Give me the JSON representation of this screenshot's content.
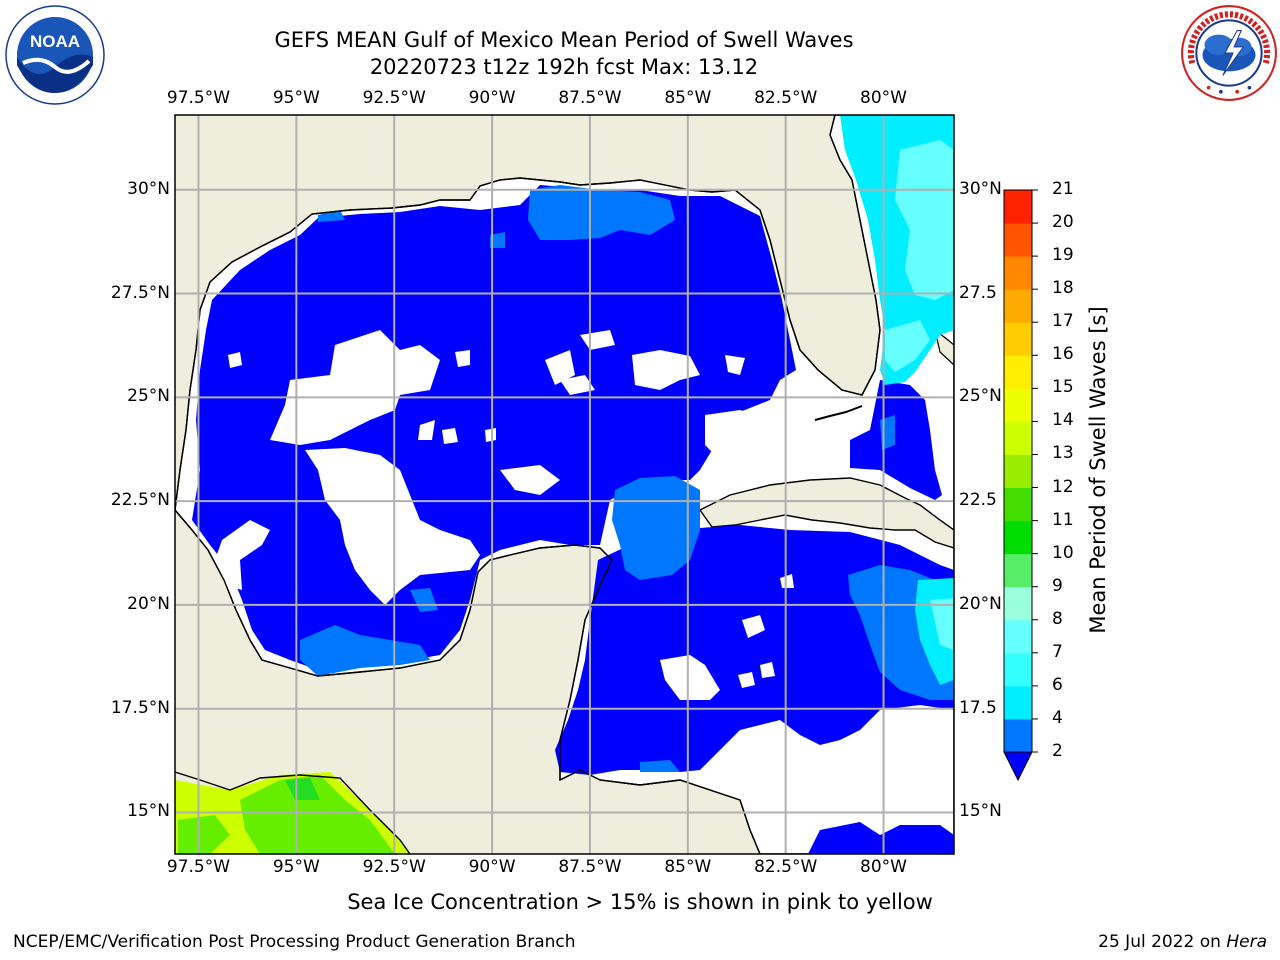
{
  "title_line1": "GEFS MEAN Gulf of Mexico Mean Period of Swell Waves",
  "title_line2": "20220723 t12z 192h fcst   Max: 13.12",
  "subnote": "Sea Ice Concentration > 15% is shown in pink to yellow",
  "footer": {
    "left": "NCEP/EMC/Verification Post Processing Product Generation Branch",
    "right_date": "25 Jul 2022 on ",
    "right_host": "Hera"
  },
  "logos": {
    "left": {
      "icon": "noaa-logo",
      "text": "NOAA",
      "ring_text": "NATIONAL OCEANIC AND ATMOSPHERIC ADMINISTRATION · U.S. DEPARTMENT OF COMMERCE"
    },
    "right": {
      "icon": "nws-logo",
      "ring_text": "NATIONAL WEATHER SERVICE"
    }
  },
  "map": {
    "lon_labels": [
      "97.5°W",
      "95°W",
      "92.5°W",
      "90°W",
      "87.5°W",
      "85°W",
      "82.5°W",
      "80°W"
    ],
    "lat_labels_left": [
      "30°N",
      "27.5°N",
      "25°N",
      "22.5°N",
      "20°N",
      "17.5°N",
      "15°N"
    ],
    "lat_labels_right": [
      "30°N",
      "27.5",
      "25°N",
      "22.5",
      "20°N",
      "17.5",
      "15°N"
    ],
    "lon_values": [
      -97.5,
      -95,
      -92.5,
      -90,
      -87.5,
      -85,
      -82.5,
      -80
    ],
    "lat_values": [
      30,
      27.5,
      25,
      22.5,
      20,
      17.5,
      15
    ],
    "extent": {
      "lon_min": -98.1,
      "lon_max": -78.2,
      "lat_min": 14.0,
      "lat_max": 31.8
    },
    "colors": {
      "land": "#efeddc",
      "ocean_missing": "#ffffff",
      "grid": "#b0b0b0"
    }
  },
  "colorbar": {
    "label": "Mean Period of Swell Waves [s]",
    "ticks": [
      "2",
      "4",
      "6",
      "7",
      "8",
      "9",
      "10",
      "11",
      "12",
      "13",
      "14",
      "15",
      "16",
      "17",
      "18",
      "19",
      "20",
      "21"
    ],
    "colors": [
      "#0000ff",
      "#0077ff",
      "#00eeff",
      "#33ffff",
      "#66ffff",
      "#99ffdd",
      "#55ee66",
      "#00dd00",
      "#44dd00",
      "#99ee00",
      "#ccff00",
      "#eeff00",
      "#ffee00",
      "#ffcc00",
      "#ffaa00",
      "#ff8800",
      "#ff5500",
      "#ff2200",
      "#ff0000"
    ],
    "extend_color": "#0000ff"
  }
}
